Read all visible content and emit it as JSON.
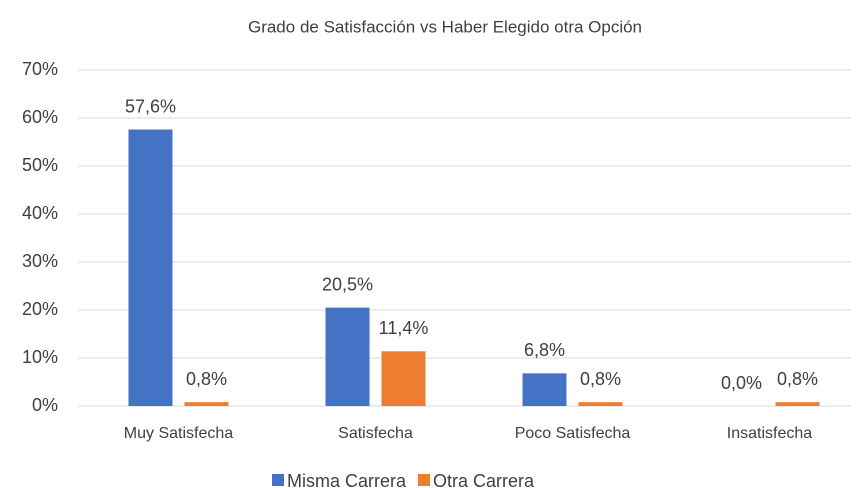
{
  "chart_data": {
    "type": "bar",
    "title": "Grado de Satisfacción vs Haber Elegido otra Opción",
    "categories": [
      "Muy Satisfecha",
      "Satisfecha",
      "Poco Satisfecha",
      "Insatisfecha"
    ],
    "series": [
      {
        "name": "Misma Carrera",
        "color": "#4472c4",
        "values": [
          57.6,
          20.5,
          6.8,
          0.0
        ],
        "value_labels": [
          "57,6%",
          "20,5%",
          "6,8%",
          "0,0%"
        ]
      },
      {
        "name": "Otra Carrera",
        "color": "#ed7d31",
        "values": [
          0.8,
          11.4,
          0.8,
          0.8
        ],
        "value_labels": [
          "0,8%",
          "11,4%",
          "0,8%",
          "0,8%"
        ]
      }
    ],
    "ylim": [
      0,
      70
    ],
    "yticks": [
      {
        "value": 0,
        "label": "0%"
      },
      {
        "value": 10,
        "label": "10%"
      },
      {
        "value": 20,
        "label": "20%"
      },
      {
        "value": 30,
        "label": "30%"
      },
      {
        "value": 40,
        "label": "40%"
      },
      {
        "value": 50,
        "label": "50%"
      },
      {
        "value": 60,
        "label": "60%"
      },
      {
        "value": 70,
        "label": "70%"
      }
    ],
    "grid": true,
    "legend": "bottom"
  }
}
